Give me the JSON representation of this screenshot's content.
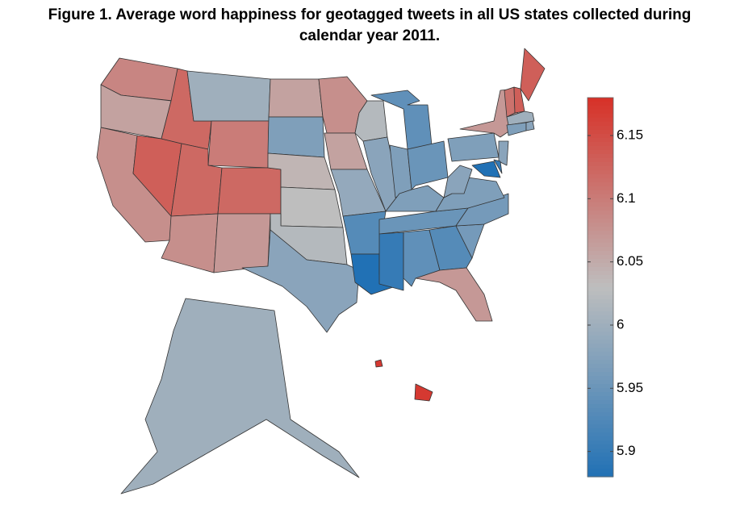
{
  "title": {
    "line1": "Figure 1. Average word happiness for geotagged tweets in all US states collected during",
    "line2": "calendar year 2011."
  },
  "map": {
    "type": "choropleth",
    "values": [
      6.09,
      6.06,
      6.08,
      6.13,
      6.12,
      6.0,
      6.1,
      6.12,
      6.12,
      6.08,
      6.07,
      6.06,
      5.97,
      6.04,
      6.03,
      6.02,
      5.98,
      6.08,
      6.06,
      5.99,
      5.93,
      5.88,
      6.02,
      5.98,
      5.94,
      5.97,
      5.95,
      5.97,
      5.95,
      5.9,
      5.94,
      5.93,
      6.07,
      5.96,
      5.96,
      5.97,
      5.98,
      5.97,
      6.07,
      6.13,
      6.11,
      6.13,
      6.0,
      5.97,
      5.98,
      5.98,
      5.9,
      5.88,
      6.0,
      6.17,
      6.17
    ]
  },
  "colorbar": {
    "lim": [
      5.88,
      6.18
    ],
    "ticks": [
      5.9,
      5.95,
      6,
      6.05,
      6.1,
      6.15
    ]
  }
}
